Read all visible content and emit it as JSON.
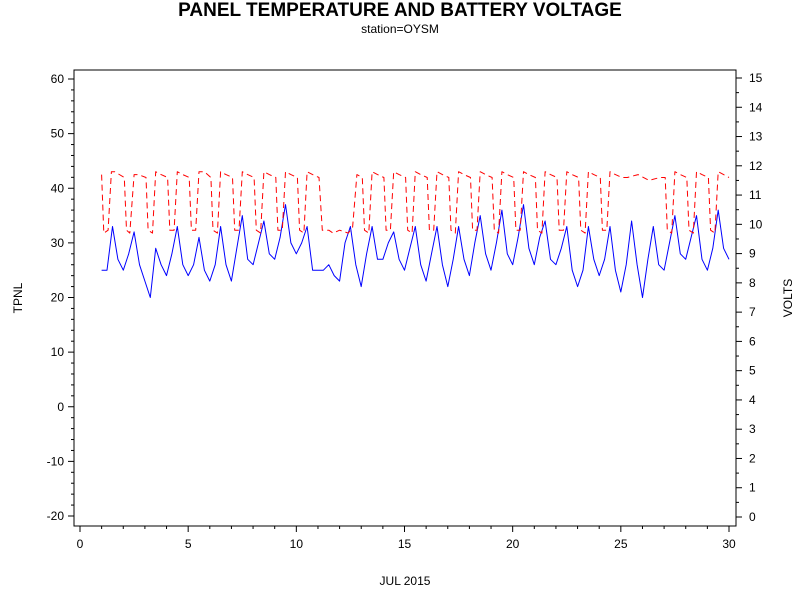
{
  "chart_data": {
    "type": "line",
    "title": "PANEL TEMPERATURE AND BATTERY VOLTAGE",
    "subtitle": "station=OYSM",
    "xlabel": "JUL 2015",
    "ylabel_left": "TPNL",
    "ylabel_right": "VOLTS",
    "xlim": [
      0,
      30
    ],
    "ylim_left": [
      -20,
      60
    ],
    "ylim_right": [
      0,
      15
    ],
    "x_ticks": [
      0,
      5,
      10,
      15,
      20,
      25,
      30
    ],
    "y_ticks_left": [
      -20,
      -10,
      0,
      10,
      20,
      30,
      40,
      50,
      60
    ],
    "y_ticks_right": [
      0,
      1,
      2,
      3,
      4,
      5,
      6,
      7,
      8,
      9,
      10,
      11,
      12,
      13,
      14,
      15
    ],
    "grid": false,
    "series": [
      {
        "name": "TPNL",
        "axis": "left",
        "color": "#0000ff",
        "style": "solid",
        "x": [
          1.0,
          1.25,
          1.5,
          1.75,
          2.0,
          2.25,
          2.5,
          2.75,
          3.0,
          3.25,
          3.5,
          3.75,
          4.0,
          4.25,
          4.5,
          4.75,
          5.0,
          5.25,
          5.5,
          5.75,
          6.0,
          6.25,
          6.5,
          6.75,
          7.0,
          7.25,
          7.5,
          7.75,
          8.0,
          8.25,
          8.5,
          8.75,
          9.0,
          9.25,
          9.5,
          9.75,
          10.0,
          10.25,
          10.5,
          10.75,
          11.0,
          11.25,
          11.5,
          11.75,
          12.0,
          12.25,
          12.5,
          12.75,
          13.0,
          13.25,
          13.5,
          13.75,
          14.0,
          14.25,
          14.5,
          14.75,
          15.0,
          15.25,
          15.5,
          15.75,
          16.0,
          16.25,
          16.5,
          16.75,
          17.0,
          17.25,
          17.5,
          17.75,
          18.0,
          18.25,
          18.5,
          18.75,
          19.0,
          19.25,
          19.5,
          19.75,
          20.0,
          20.25,
          20.5,
          20.75,
          21.0,
          21.25,
          21.5,
          21.75,
          22.0,
          22.25,
          22.5,
          22.75,
          23.0,
          23.25,
          23.5,
          23.75,
          24.0,
          24.25,
          24.5,
          24.75,
          25.0,
          25.25,
          25.5,
          25.75,
          26.0,
          26.25,
          26.5,
          26.75,
          27.0,
          27.25,
          27.5,
          27.75,
          28.0,
          28.25,
          28.5,
          28.75,
          29.0,
          29.25,
          29.5,
          29.75,
          30.0
        ],
        "values": [
          25,
          25,
          33,
          27,
          25,
          28,
          32,
          26,
          23,
          20,
          29,
          26,
          24,
          28,
          33,
          26,
          24,
          26,
          31,
          25,
          23,
          26,
          33,
          26,
          23,
          29,
          35,
          27,
          26,
          30,
          34,
          28,
          27,
          31,
          37,
          30,
          28,
          30,
          33,
          25,
          25,
          25,
          26,
          24,
          23,
          30,
          33,
          26,
          22,
          28,
          33,
          27,
          27,
          30,
          32,
          27,
          25,
          29,
          33,
          26,
          23,
          28,
          33,
          26,
          22,
          27,
          33,
          27,
          24,
          30,
          35,
          28,
          25,
          30,
          36,
          28,
          26,
          31,
          37,
          29,
          26,
          31,
          34,
          27,
          26,
          29,
          33,
          25,
          22,
          25,
          33,
          27,
          24,
          27,
          33,
          25,
          21,
          26,
          34,
          26,
          20,
          27,
          33,
          26,
          25,
          30,
          35,
          28,
          27,
          31,
          35,
          27,
          25,
          29,
          36,
          29,
          27
        ]
      },
      {
        "name": "VOLTS",
        "axis": "right",
        "color": "#ff0000",
        "style": "dashed",
        "x": [
          1.0,
          1.1,
          1.3,
          1.45,
          1.6,
          2.05,
          2.15,
          2.3,
          2.5,
          2.7,
          3.05,
          3.15,
          3.35,
          3.5,
          3.75,
          4.05,
          4.15,
          4.35,
          4.5,
          4.75,
          5.05,
          5.15,
          5.35,
          5.5,
          5.75,
          6.05,
          6.15,
          6.35,
          6.5,
          6.75,
          7.05,
          7.15,
          7.35,
          7.5,
          7.75,
          8.05,
          8.15,
          8.35,
          8.5,
          8.75,
          9.05,
          9.15,
          9.35,
          9.5,
          9.75,
          10.05,
          10.15,
          10.35,
          10.5,
          10.75,
          11.05,
          11.2,
          11.5,
          11.7,
          12.0,
          12.4,
          12.6,
          12.8,
          13.05,
          13.15,
          13.35,
          13.5,
          13.75,
          14.05,
          14.15,
          14.35,
          14.5,
          14.75,
          15.05,
          15.15,
          15.35,
          15.5,
          15.75,
          16.05,
          16.15,
          16.35,
          16.5,
          16.75,
          17.05,
          17.15,
          17.35,
          17.5,
          17.75,
          18.05,
          18.15,
          18.35,
          18.5,
          18.75,
          19.05,
          19.15,
          19.35,
          19.5,
          19.75,
          20.05,
          20.15,
          20.35,
          20.5,
          20.75,
          21.05,
          21.15,
          21.35,
          21.5,
          21.75,
          22.05,
          22.15,
          22.35,
          22.5,
          22.75,
          23.05,
          23.15,
          23.35,
          23.5,
          23.75,
          24.05,
          24.15,
          24.35,
          24.5,
          24.75,
          25.05,
          25.3,
          25.8,
          26.3,
          26.8,
          27.05,
          27.15,
          27.35,
          27.5,
          27.75,
          28.05,
          28.15,
          28.35,
          28.5,
          28.75,
          29.05,
          29.15,
          29.35,
          29.5,
          29.75,
          30.0
        ],
        "values": [
          11.7,
          9.7,
          9.8,
          11.8,
          11.8,
          11.6,
          9.8,
          9.7,
          11.7,
          11.7,
          11.6,
          9.8,
          9.7,
          11.8,
          11.7,
          11.6,
          9.8,
          9.8,
          11.8,
          11.7,
          11.6,
          9.8,
          9.8,
          11.8,
          11.8,
          11.6,
          9.8,
          9.7,
          11.8,
          11.7,
          11.6,
          9.8,
          9.8,
          11.8,
          11.7,
          11.6,
          9.8,
          9.7,
          11.8,
          11.7,
          11.6,
          9.8,
          9.8,
          11.8,
          11.7,
          11.6,
          9.8,
          9.7,
          11.8,
          11.7,
          11.6,
          9.8,
          9.8,
          9.7,
          9.8,
          9.7,
          9.9,
          11.7,
          11.6,
          9.8,
          9.7,
          11.8,
          11.7,
          11.6,
          9.8,
          9.8,
          11.8,
          11.7,
          11.6,
          9.8,
          9.7,
          11.8,
          11.7,
          11.6,
          9.8,
          9.8,
          11.8,
          11.7,
          11.6,
          9.8,
          9.7,
          11.8,
          11.7,
          11.6,
          9.8,
          9.8,
          11.8,
          11.7,
          11.6,
          9.8,
          9.7,
          11.8,
          11.7,
          11.6,
          9.8,
          9.8,
          11.8,
          11.7,
          11.6,
          9.8,
          9.7,
          11.8,
          11.7,
          11.6,
          9.8,
          9.8,
          11.8,
          11.7,
          11.6,
          9.8,
          9.7,
          11.8,
          11.7,
          11.6,
          9.8,
          9.8,
          11.8,
          11.7,
          11.6,
          11.6,
          11.7,
          11.5,
          11.6,
          11.6,
          9.8,
          9.7,
          11.8,
          11.7,
          11.6,
          9.8,
          9.7,
          11.8,
          11.7,
          11.6,
          9.8,
          9.7,
          11.8,
          11.7,
          11.6
        ]
      }
    ]
  }
}
